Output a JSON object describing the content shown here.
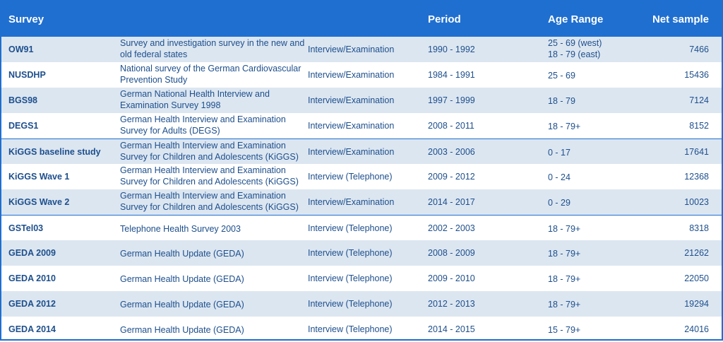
{
  "header": {
    "survey": "Survey",
    "period": "Period",
    "age_range": "Age Range",
    "net_sample": "Net sample"
  },
  "rows": [
    {
      "survey": "OW91",
      "name": "Survey and investigation survey in the new and old federal states",
      "method": "Interview/Examination",
      "period": "1990 - 1992",
      "age": [
        "25 - 69 (west)",
        "18 - 79 (east)"
      ],
      "net": "7466"
    },
    {
      "survey": "NUSDHP",
      "name": "National survey of the German Cardiovascular Prevention Study",
      "method": "Interview/Examination",
      "period": "1984 - 1991",
      "age": [
        "25 - 69"
      ],
      "net": "15436"
    },
    {
      "survey": "BGS98",
      "name": "German National Health Interview and Examination Survey 1998",
      "method": "Interview/Examination",
      "period": "1997 - 1999",
      "age": [
        "18 - 79"
      ],
      "net": "7124"
    },
    {
      "survey": "DEGS1",
      "name": "German Health Interview and Examination Survey for Adults (DEGS)",
      "method": "Interview/Examination",
      "period": "2008 - 2011",
      "age": [
        "18 - 79+"
      ],
      "net": "8152"
    },
    {
      "survey": "KiGGS baseline study",
      "name": "German Health Interview and Examination Survey for Children and Adolescents (KiGGS)",
      "method": "Interview/Examination",
      "period": "2003 - 2006",
      "age": [
        "0 - 17"
      ],
      "net": "17641"
    },
    {
      "survey": "KiGGS Wave 1",
      "name": "German Health Interview and Examination Survey for Children and Adolescents (KiGGS)",
      "method": "Interview (Telephone)",
      "period": "2009 - 2012",
      "age": [
        "0 - 24"
      ],
      "net": "12368"
    },
    {
      "survey": "KiGGS Wave 2",
      "name": "German Health Interview and Examination Survey for Children and Adolescents (KiGGS)",
      "method": "Interview/Examination",
      "period": "2014 - 2017",
      "age": [
        "0 - 29"
      ],
      "net": "10023"
    },
    {
      "survey": "GSTel03",
      "name": "Telephone Health Survey 2003",
      "method": "Interview (Telephone)",
      "period": "2002 - 2003",
      "age": [
        "18 - 79+"
      ],
      "net": "8318"
    },
    {
      "survey": "GEDA 2009",
      "name": "German Health Update (GEDA)",
      "method": "Interview (Telephone)",
      "period": "2008 - 2009",
      "age": [
        "18 - 79+"
      ],
      "net": "21262"
    },
    {
      "survey": "GEDA 2010",
      "name": "German Health Update (GEDA)",
      "method": "Interview (Telephone)",
      "period": "2009 - 2010",
      "age": [
        "18 - 79+"
      ],
      "net": "22050"
    },
    {
      "survey": "GEDA 2012",
      "name": "German Health Update (GEDA)",
      "method": "Interview (Telephone)",
      "period": "2012 - 2013",
      "age": [
        "18 - 79+"
      ],
      "net": "19294"
    },
    {
      "survey": "GEDA 2014",
      "name": "German Health Update (GEDA)",
      "method": "Interview (Telephone)",
      "period": "2014 - 2015",
      "age": [
        "15 - 79+"
      ],
      "net": "24016"
    }
  ]
}
